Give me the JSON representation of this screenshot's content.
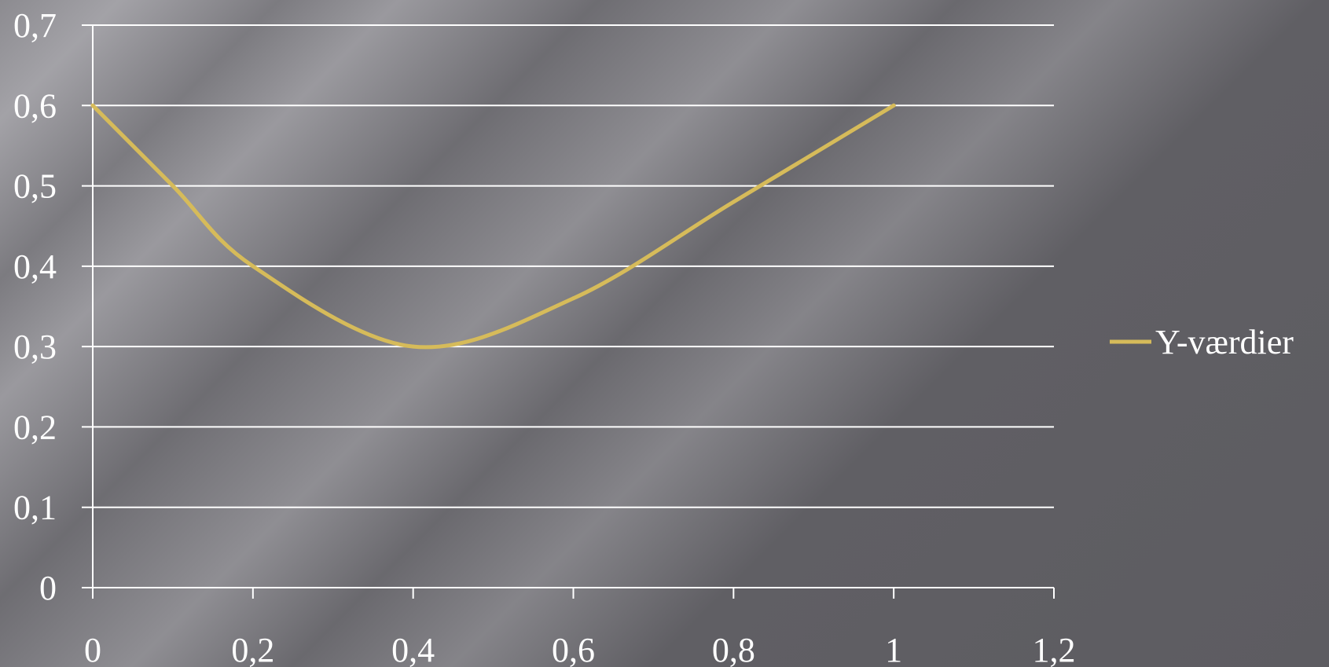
{
  "chart_data": {
    "type": "line",
    "title": "",
    "xlabel": "",
    "ylabel": "",
    "xlim": [
      0,
      1.2
    ],
    "ylim": [
      0,
      0.7
    ],
    "x_ticks": [
      "0",
      "0,2",
      "0,4",
      "0,6",
      "0,8",
      "1",
      "1,2"
    ],
    "y_ticks": [
      "0",
      "0,1",
      "0,2",
      "0,3",
      "0,4",
      "0,5",
      "0,6",
      "0,7"
    ],
    "grid": "horizontal",
    "smooth": true,
    "legend_position": "right",
    "series": [
      {
        "name": "Y-værdier",
        "color": "#d6bb5a",
        "x": [
          0,
          0.1,
          0.2,
          0.4,
          0.6,
          0.8,
          1
        ],
        "y": [
          0.6,
          0.5,
          0.4,
          0.3,
          0.36,
          0.48,
          0.6
        ]
      }
    ]
  },
  "colors": {
    "axis": "#ffffff",
    "grid": "#ffffff",
    "series": "#d6bb5a"
  }
}
